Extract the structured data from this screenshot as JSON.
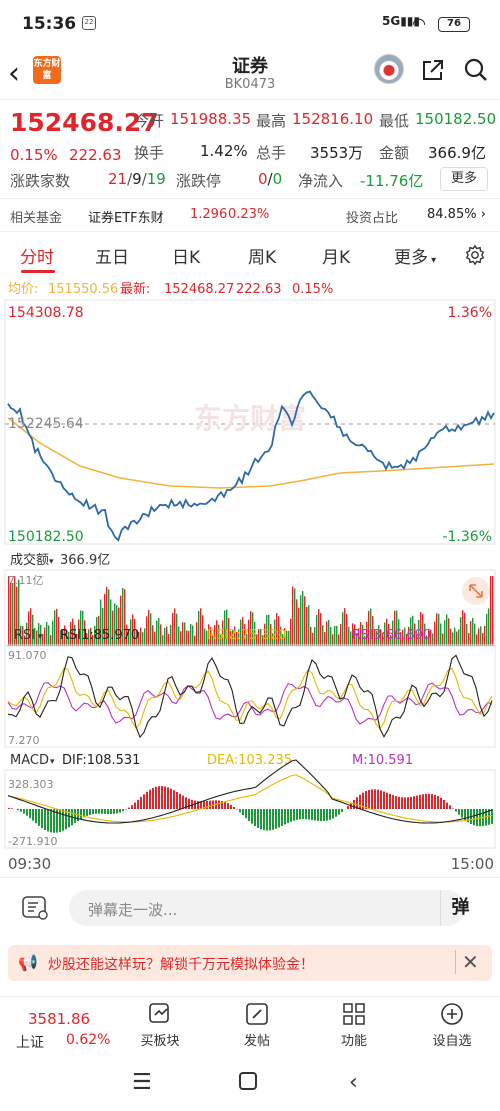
{
  "status": {
    "time": "15:36",
    "notif": "22",
    "network": "5G",
    "battery": "76"
  },
  "header": {
    "title": "证券",
    "code": "BK0473",
    "logo_text": "东方财富"
  },
  "quote": {
    "price": "152468.27",
    "change_pct": "0.15%",
    "change": "222.63",
    "open_label": "今开",
    "open": "151988.35",
    "high_label": "最高",
    "high": "152816.10",
    "low_label": "最低",
    "low": "150182.50",
    "turnover_label": "换手",
    "turnover": "1.42%",
    "volume_label": "总手",
    "volume": "3553万",
    "amount_label": "金额",
    "amount": "366.9亿",
    "updown_label": "涨跌家数",
    "updown_up": "21",
    "updown_flat": "9",
    "updown_down": "19",
    "limit_label": "涨跌停",
    "limit_up": "0",
    "limit_down": "0",
    "netflow_label": "净流入",
    "netflow": "-11.76亿",
    "more_label": "更多"
  },
  "fund": {
    "label": "相关基金",
    "name": "证券ETF东财",
    "price": "1.296",
    "pct": "0.23%",
    "ratio_label": "投资占比",
    "ratio": "84.85%"
  },
  "tabs": [
    "分时",
    "五日",
    "日K",
    "周K",
    "月K",
    "更多"
  ],
  "chart_header": {
    "avg_label": "均价:",
    "avg": "151550.56",
    "latest_label": "最新:",
    "latest": "152468.27",
    "change": "222.63",
    "pct": "0.15%"
  },
  "chart_labels": {
    "top_price": "154308.78",
    "mid_price": "152245.64",
    "bottom_price": "150182.50",
    "top_pct": "1.36%",
    "bottom_pct": "-1.36%",
    "vol_title": "成交额",
    "vol_value": "366.9亿",
    "vol_max": "7.11亿",
    "rsi_title": "RSI",
    "rsi1": "RSI1:85.970",
    "rsi2": "RSI2:75.320",
    "rsi3": "RSI3:66.690",
    "rsi_max": "91.070",
    "rsi_min": "7.270",
    "macd_title": "MACD",
    "dif": "DIF:108.531",
    "dea": "DEA:103.235",
    "m": "M:10.591",
    "macd_max": "328.303",
    "macd_min": "-271.910",
    "time_start": "09:30",
    "time_end": "15:00",
    "watermark": "东方财富"
  },
  "chart_data": {
    "type": "line",
    "x_range": [
      "09:30",
      "15:00"
    ],
    "ylim": [
      150182.5,
      154308.78
    ],
    "prev_close": 152245.64,
    "series": [
      {
        "name": "最新",
        "color": "#2e6aa8"
      },
      {
        "name": "均价",
        "color": "#f0b33c"
      }
    ]
  },
  "bottom": {
    "danmu_placeholder": "弹幕走一波...",
    "danmu_btn": "弹",
    "banner_text": "炒股还能这样玩？解锁千万元模拟体验金！",
    "nav": [
      {
        "label": "上证",
        "value": "3581.86",
        "pct": "0.62%"
      },
      {
        "label": "买板块"
      },
      {
        "label": "发帖"
      },
      {
        "label": "功能"
      },
      {
        "label": "设自选"
      }
    ]
  }
}
